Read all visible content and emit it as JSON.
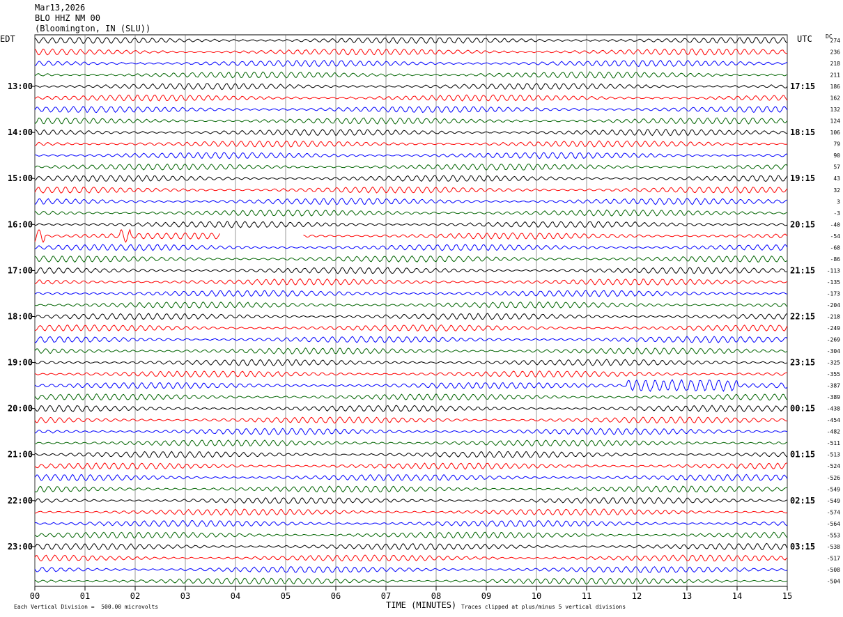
{
  "header": {
    "date": "Mar13,2026",
    "station": "BLO HHZ NM 00",
    "location": "(Bloomington, IN (SLU))"
  },
  "left_axis_label": "EDT",
  "right_axis_label": "UTC",
  "dc_label": "DC",
  "footer": {
    "scale_note": "Each Vertical Division =  500.00 microvolts",
    "xlabel": "TIME (MINUTES)",
    "clip_note": "Traces clipped at plus/minus 5 vertical divisions"
  },
  "colors": {
    "trace_cycle": [
      "#000000",
      "#ff0000",
      "#0000ff",
      "#006400"
    ],
    "grid": "#000000"
  },
  "chart_data": {
    "type": "line",
    "title": "BLO HHZ NM 00",
    "xlabel": "TIME (MINUTES)",
    "xlim": [
      0,
      15
    ],
    "x_ticks": [
      "00",
      "01",
      "02",
      "03",
      "04",
      "05",
      "06",
      "07",
      "08",
      "09",
      "10",
      "11",
      "12",
      "13",
      "14",
      "15"
    ],
    "trace_count": 48,
    "trace_interval_minutes": 15,
    "edt_ticks": [
      "13:00",
      "14:00",
      "15:00",
      "16:00",
      "17:00",
      "18:00",
      "19:00",
      "20:00",
      "21:00",
      "22:00",
      "23:00"
    ],
    "utc_ticks": [
      "17:15",
      "18:15",
      "19:15",
      "20:15",
      "21:15",
      "22:15",
      "23:15",
      "00:15",
      "01:15",
      "02:15",
      "03:15"
    ],
    "dc_offsets": [
      274,
      236,
      218,
      211,
      186,
      162,
      132,
      124,
      106,
      79,
      90,
      57,
      43,
      32,
      3,
      -3,
      -40,
      -54,
      -68,
      -86,
      -113,
      -135,
      -173,
      -204,
      -218,
      -249,
      -269,
      -304,
      -325,
      -355,
      -387,
      -389,
      -438,
      -454,
      -482,
      -511,
      -513,
      -524,
      -526,
      -549,
      -549,
      -574,
      -564,
      -553,
      -538,
      -517,
      -508,
      -504
    ],
    "events": [
      {
        "trace": 17,
        "minute_start": 0.0,
        "minute_end": 0.2,
        "note": "spike"
      },
      {
        "trace": 17,
        "minute_start": 1.7,
        "minute_end": 1.9,
        "note": "spike"
      },
      {
        "trace": 30,
        "minute_start": 11.8,
        "minute_end": 14.0,
        "note": "burst"
      }
    ],
    "gaps": [
      {
        "trace": 17,
        "minute_start": 3.7,
        "minute_end": 5.35
      }
    ]
  }
}
